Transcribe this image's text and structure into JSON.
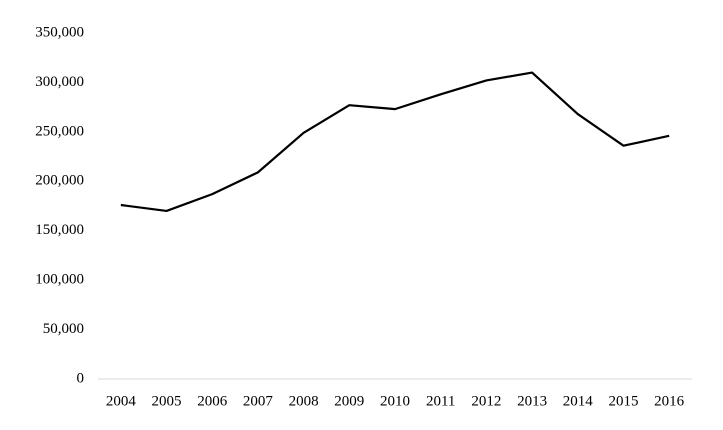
{
  "chart_data": {
    "type": "line",
    "categories": [
      "2004",
      "2005",
      "2006",
      "2007",
      "2008",
      "2009",
      "2010",
      "2011",
      "2012",
      "2013",
      "2014",
      "2015",
      "2016"
    ],
    "values": [
      176000,
      170000,
      187000,
      209000,
      249000,
      277000,
      273000,
      288000,
      302000,
      310000,
      268000,
      236000,
      246000
    ],
    "color": "#000000",
    "ylim": [
      0,
      350000
    ],
    "yticks": [
      0,
      {
        "value": 50000,
        "label": "50,000"
      },
      {
        "value": 100000,
        "label": "100,000"
      },
      {
        "value": 150000,
        "label": "150,000"
      },
      {
        "value": 200000,
        "label": "200,000"
      },
      {
        "value": 250000,
        "label": "250,000"
      },
      {
        "value": 300000,
        "label": "300,000"
      },
      {
        "value": 350000,
        "label": "350,000"
      }
    ],
    "grid": false
  }
}
